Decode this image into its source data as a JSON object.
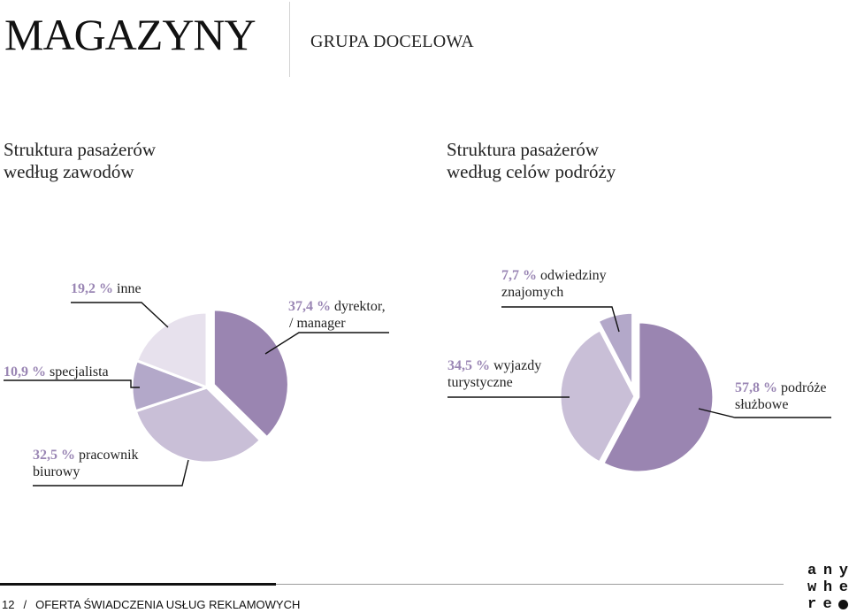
{
  "header": {
    "title": "MAGAZYNY",
    "section": "GRUPA DOCELOWA"
  },
  "footer": {
    "page_number": "12",
    "separator": "/",
    "text": "OFERTA ŚWIADCZENIA USŁUG REKLAMOWYCH"
  },
  "logo": {
    "rows": [
      [
        "a",
        "n",
        "y"
      ],
      [
        "w",
        "h",
        "e"
      ],
      [
        "r",
        "e",
        ""
      ]
    ]
  },
  "colors": {
    "accent": "#9a86b4",
    "slice_dark": "#9a85b1",
    "slice_medium": "#c9bfd7",
    "slice_small": "#b3a8c9",
    "slice_light": "#e7e1ed"
  },
  "chart_data": [
    {
      "type": "pie",
      "title": "Struktura pasażerów według zawodów",
      "title_lines": [
        "Struktura pasażerów",
        "według zawodów"
      ],
      "start_angle_deg": 0,
      "direction": "clockwise",
      "slices": [
        {
          "label": "dyrektor, / manager",
          "value": 37.4,
          "pct_text": "37,4 %",
          "label_lines": [
            "dyrektor,",
            "/ manager"
          ],
          "color": "#9a85b1"
        },
        {
          "label": "pracownik biurowy",
          "value": 32.5,
          "pct_text": "32,5 %",
          "label_lines": [
            "pracownik",
            "biurowy"
          ],
          "color": "#c9bfd7"
        },
        {
          "label": "specjalista",
          "value": 10.9,
          "pct_text": "10,9 %",
          "label_lines": [
            "specjalista"
          ],
          "color": "#b3a8c9"
        },
        {
          "label": "inne",
          "value": 19.2,
          "pct_text": "19,2 %",
          "label_lines": [
            "inne"
          ],
          "color": "#e7e1ed"
        }
      ]
    },
    {
      "type": "pie",
      "title": "Struktura pasażerów według celów podróży",
      "title_lines": [
        "Struktura pasażerów",
        "według celów podróży"
      ],
      "start_angle_deg": 0,
      "direction": "clockwise",
      "slices": [
        {
          "label": "podróże służbowe",
          "value": 57.8,
          "pct_text": "57,8 %",
          "label_lines": [
            "podróże",
            "służbowe"
          ],
          "color": "#9a85b1"
        },
        {
          "label": "wyjazdy turystyczne",
          "value": 34.5,
          "pct_text": "34,5 %",
          "label_lines": [
            "wyjazdy",
            "turystyczne"
          ],
          "color": "#c9bfd7"
        },
        {
          "label": "odwiedziny znajomych",
          "value": 7.7,
          "pct_text": "7,7 %",
          "label_lines": [
            "odwiedziny",
            "znajomych"
          ],
          "color": "#b3a8c9"
        }
      ]
    }
  ]
}
